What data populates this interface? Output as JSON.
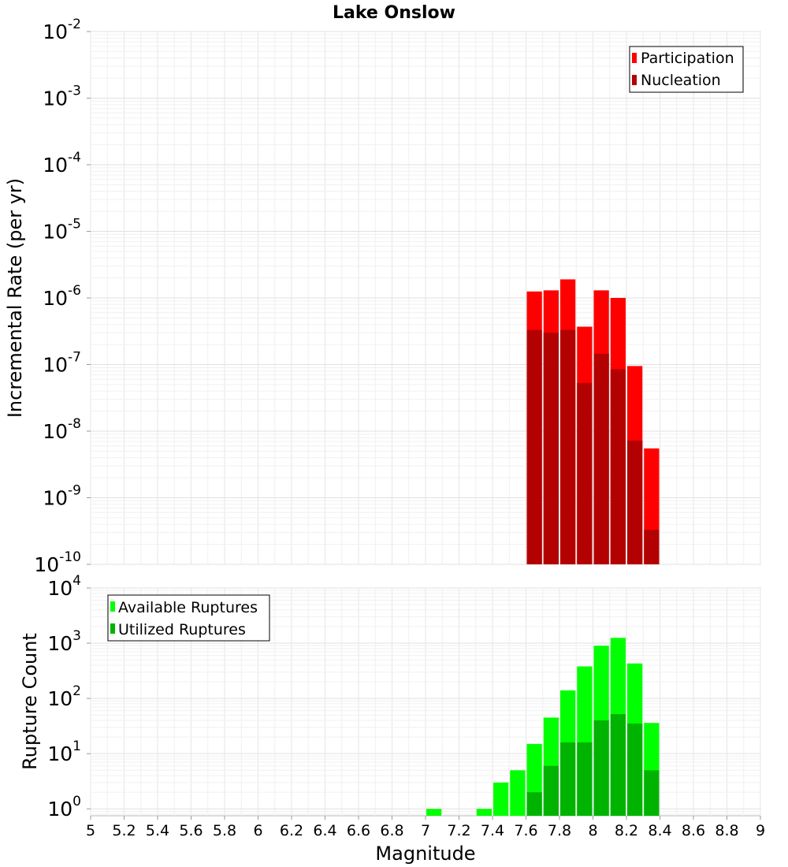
{
  "chart_data": [
    {
      "type": "bar",
      "title": "Lake Onslow",
      "ylabel": "Incremental Rate (per yr)",
      "xlabel": "",
      "yscale": "log",
      "ylim": [
        1e-10,
        0.01
      ],
      "xlim": [
        5,
        9
      ],
      "y_ticks": [
        {
          "base": "10",
          "exp": "-10"
        },
        {
          "base": "10",
          "exp": "-9"
        },
        {
          "base": "10",
          "exp": "-8"
        },
        {
          "base": "10",
          "exp": "-7"
        },
        {
          "base": "10",
          "exp": "-6"
        },
        {
          "base": "10",
          "exp": "-5"
        },
        {
          "base": "10",
          "exp": "-4"
        },
        {
          "base": "10",
          "exp": "-3"
        },
        {
          "base": "10",
          "exp": "-2"
        }
      ],
      "legend_position": "top-right",
      "bar_width": 0.1,
      "x": [
        7.65,
        7.75,
        7.85,
        7.95,
        8.05,
        8.15,
        8.25,
        8.35
      ],
      "series": [
        {
          "name": "Participation",
          "color": "#ff0000",
          "values": [
            1.25e-06,
            1.3e-06,
            1.9e-06,
            3.7e-07,
            1.3e-06,
            1e-06,
            9.5e-08,
            5.5e-09
          ]
        },
        {
          "name": "Nucleation",
          "color": "#b30000",
          "values": [
            3.3e-07,
            3e-07,
            3.3e-07,
            5.3e-08,
            1.45e-07,
            8.5e-08,
            7.2e-09,
            3.3e-10
          ]
        }
      ]
    },
    {
      "type": "bar",
      "title": "",
      "ylabel": "Rupture Count",
      "xlabel": "Magnitude",
      "yscale": "log",
      "ylim": [
        0.75,
        10000
      ],
      "xlim": [
        5,
        9
      ],
      "y_ticks": [
        {
          "base": "10",
          "exp": "0"
        },
        {
          "base": "10",
          "exp": "1"
        },
        {
          "base": "10",
          "exp": "2"
        },
        {
          "base": "10",
          "exp": "3"
        },
        {
          "base": "10",
          "exp": "4"
        }
      ],
      "x_ticks": [
        "5",
        "5.2",
        "5.4",
        "5.6",
        "5.8",
        "6",
        "6.2",
        "6.4",
        "6.6",
        "6.8",
        "7",
        "7.2",
        "7.4",
        "7.6",
        "7.8",
        "8",
        "8.2",
        "8.4",
        "8.6",
        "8.8",
        "9"
      ],
      "legend_position": "top-left",
      "bar_width": 0.1,
      "x": [
        7.05,
        7.35,
        7.45,
        7.55,
        7.65,
        7.75,
        7.85,
        7.95,
        8.05,
        8.15,
        8.25,
        8.35
      ],
      "series": [
        {
          "name": "Available Ruptures",
          "color": "#00ff00",
          "values": [
            1,
            1,
            3,
            5,
            15,
            45,
            140,
            380,
            900,
            1250,
            430,
            36
          ]
        },
        {
          "name": "Utilized Ruptures",
          "color": "#00b300",
          "values": [
            0,
            0,
            0,
            0,
            2,
            6,
            16,
            16,
            40,
            52,
            35,
            5
          ]
        }
      ]
    }
  ]
}
